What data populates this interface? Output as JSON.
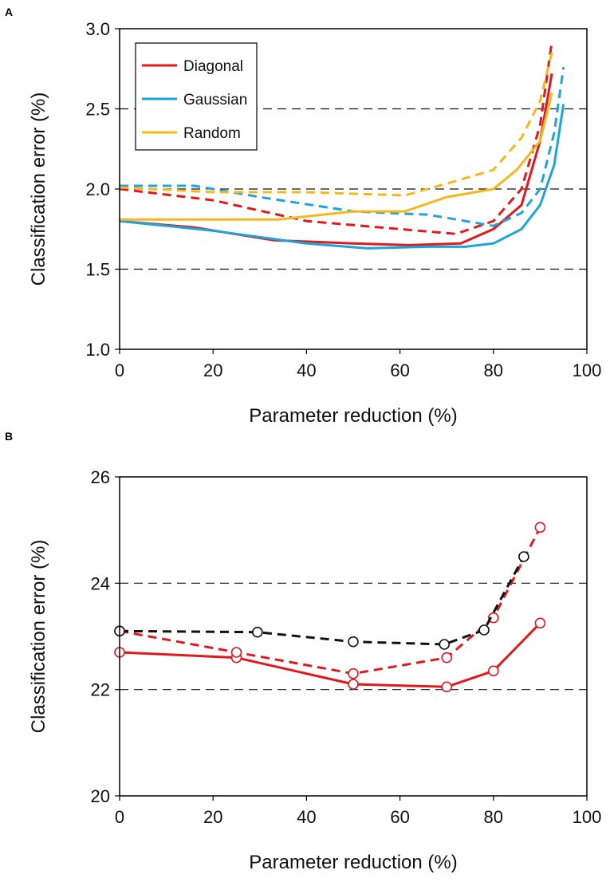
{
  "chart_data": [
    {
      "panel": "A",
      "type": "line",
      "xlabel": "Parameter reduction (%)",
      "ylabel": "Classification error (%)",
      "xlim": [
        0,
        100
      ],
      "ylim": [
        1.0,
        3.0
      ],
      "xticks": [
        0,
        20,
        40,
        60,
        80,
        100
      ],
      "xtick_labels": [
        "0",
        "20",
        "40",
        "60",
        "80",
        "100"
      ],
      "yticks": [
        1.0,
        1.5,
        2.0,
        2.5,
        3.0
      ],
      "ytick_labels": [
        "1.0",
        "1.5",
        "2.0",
        "2.5",
        "3.0"
      ],
      "gridlines_y": [
        1.5,
        2.0,
        2.5
      ],
      "legend": {
        "position": "top-left",
        "entries": [
          "Diagonal",
          "Gaussian",
          "Random"
        ]
      },
      "series": [
        {
          "name": "Diagonal",
          "color": "#e0191f",
          "style": "solid",
          "x": [
            0,
            16,
            33,
            50,
            62,
            73,
            80,
            86,
            90,
            92.5
          ],
          "y": [
            1.8,
            1.76,
            1.68,
            1.66,
            1.65,
            1.66,
            1.75,
            1.9,
            2.3,
            2.72
          ]
        },
        {
          "name": "Diagonal",
          "color": "#e0191f",
          "style": "dashed",
          "x": [
            0,
            20,
            40,
            60,
            72,
            80,
            86,
            90,
            92.5
          ],
          "y": [
            2.0,
            1.93,
            1.8,
            1.75,
            1.72,
            1.8,
            2.0,
            2.4,
            2.92
          ]
        },
        {
          "name": "Gaussian",
          "color": "#1ea4d8",
          "style": "solid",
          "x": [
            0,
            20,
            40,
            53,
            66,
            74,
            80,
            86,
            90,
            93,
            95
          ],
          "y": [
            1.8,
            1.74,
            1.66,
            1.63,
            1.64,
            1.64,
            1.66,
            1.75,
            1.9,
            2.15,
            2.53
          ]
        },
        {
          "name": "Gaussian",
          "color": "#1ea4d8",
          "style": "dashed",
          "x": [
            0,
            16,
            30,
            50,
            66,
            80,
            86,
            90,
            93,
            95
          ],
          "y": [
            2.02,
            2.02,
            1.95,
            1.86,
            1.84,
            1.77,
            1.85,
            2.0,
            2.35,
            2.76
          ]
        },
        {
          "name": "Random",
          "color": "#f5b81c",
          "style": "solid",
          "x": [
            0,
            20,
            34,
            50,
            61,
            70,
            80,
            85,
            90,
            92.5
          ],
          "y": [
            1.81,
            1.81,
            1.81,
            1.86,
            1.86,
            1.95,
            2.0,
            2.12,
            2.3,
            2.6
          ]
        },
        {
          "name": "Random",
          "color": "#f5b81c",
          "style": "dashed",
          "x": [
            0,
            20,
            40,
            61,
            72,
            80,
            86,
            90,
            92.5
          ],
          "y": [
            2.01,
            1.98,
            1.98,
            1.96,
            2.05,
            2.12,
            2.32,
            2.55,
            2.85
          ]
        }
      ]
    },
    {
      "panel": "B",
      "type": "line",
      "xlabel": "Parameter reduction (%)",
      "ylabel": "Classification error (%)",
      "xlim": [
        0,
        100
      ],
      "ylim": [
        20,
        26
      ],
      "xticks": [
        0,
        20,
        40,
        60,
        80,
        100
      ],
      "xtick_labels": [
        "0",
        "20",
        "40",
        "60",
        "80",
        "100"
      ],
      "yticks": [
        20,
        22,
        24,
        26
      ],
      "ytick_labels": [
        "20",
        "22",
        "24",
        "26"
      ],
      "gridlines_y": [
        22,
        24
      ],
      "series": [
        {
          "name": "red solid",
          "color": "#e0191f",
          "style": "solid",
          "marker": "circle",
          "x": [
            0,
            25,
            50,
            70,
            80,
            90
          ],
          "y": [
            22.7,
            22.6,
            22.1,
            22.05,
            22.35,
            23.25
          ]
        },
        {
          "name": "red dashed",
          "color": "#e0191f",
          "style": "dashed",
          "marker": "circle",
          "x": [
            0,
            25,
            50,
            70,
            80,
            90
          ],
          "y": [
            23.1,
            22.7,
            22.3,
            22.6,
            23.35,
            25.05
          ]
        },
        {
          "name": "black dashed",
          "color": "#111111",
          "style": "dashed",
          "marker": "circle",
          "x": [
            0,
            29.5,
            50,
            69.5,
            78,
            86.5
          ],
          "y": [
            23.1,
            23.08,
            22.9,
            22.85,
            23.12,
            24.5
          ]
        }
      ]
    }
  ]
}
